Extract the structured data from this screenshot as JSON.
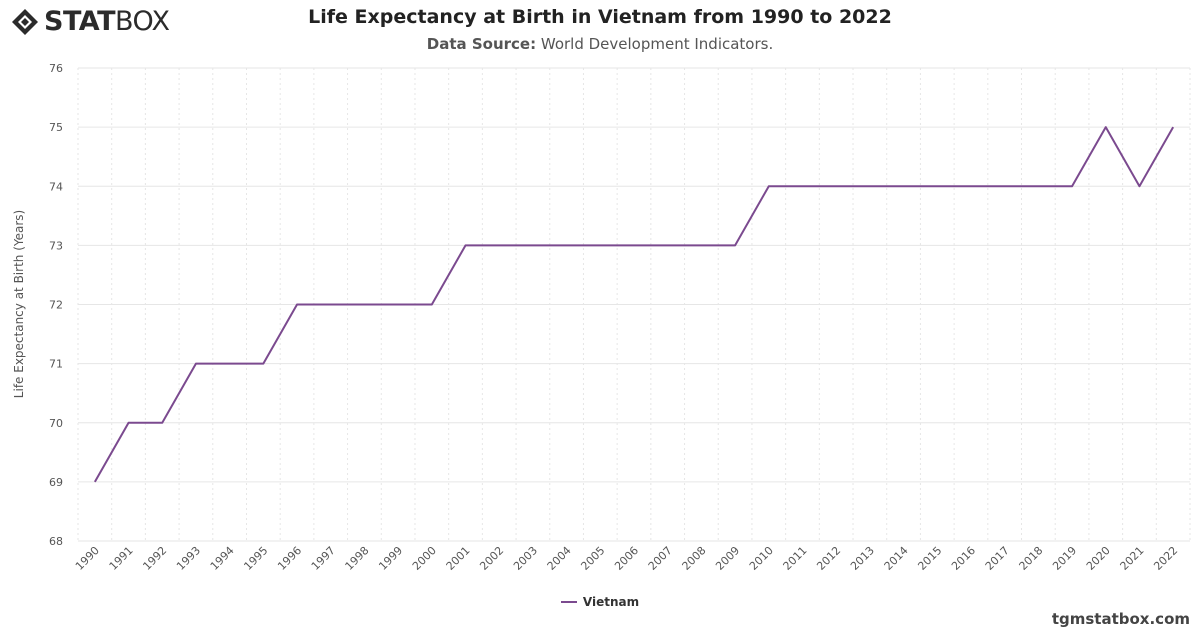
{
  "logo": {
    "text_bold": "STAT",
    "text_light": "BOX"
  },
  "header": {
    "title": "Life Expectancy at Birth in Vietnam from 1990 to 2022",
    "subtitle_label": "Data Source:",
    "subtitle_value": " World Development Indicators."
  },
  "watermark": "tgmstatbox.com",
  "colors": {
    "series": "#7b4a8f",
    "grid": "#e6e6e6",
    "axis_text": "#555555"
  },
  "chart_data": {
    "type": "line",
    "title": "Life Expectancy at Birth in Vietnam from 1990 to 2022",
    "xlabel": "",
    "ylabel": "Life Expectancy at Birth (Years)",
    "ylim": [
      68,
      76
    ],
    "yticks": [
      68,
      69,
      70,
      71,
      72,
      73,
      74,
      75,
      76
    ],
    "x": [
      "1990",
      "1991",
      "1992",
      "1993",
      "1994",
      "1995",
      "1996",
      "1997",
      "1998",
      "1999",
      "2000",
      "2001",
      "2002",
      "2003",
      "2004",
      "2005",
      "2006",
      "2007",
      "2008",
      "2009",
      "2010",
      "2011",
      "2012",
      "2013",
      "2014",
      "2015",
      "2016",
      "2017",
      "2018",
      "2019",
      "2020",
      "2021",
      "2022"
    ],
    "series": [
      {
        "name": "Vietnam",
        "values": [
          69,
          70,
          70,
          71,
          71,
          71,
          72,
          72,
          72,
          72,
          72,
          73,
          73,
          73,
          73,
          73,
          73,
          73,
          73,
          73,
          74,
          74,
          74,
          74,
          74,
          74,
          74,
          74,
          74,
          74,
          75,
          74,
          75
        ]
      }
    ],
    "grid": true,
    "legend": "bottom-center"
  }
}
